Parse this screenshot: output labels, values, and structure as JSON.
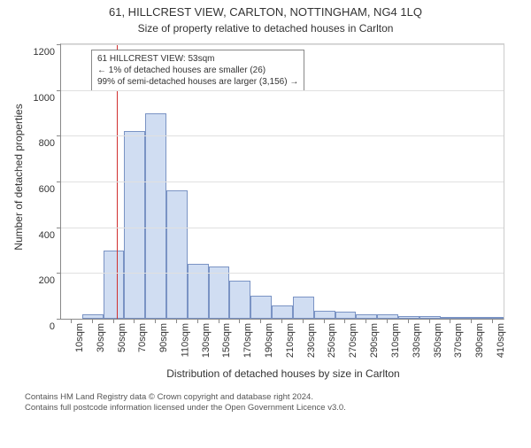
{
  "title_main": "61, HILLCREST VIEW, CARLTON, NOTTINGHAM, NG4 1LQ",
  "title_sub": "Size of property relative to detached houses in Carlton",
  "y_axis_label": "Number of detached properties",
  "x_axis_label": "Distribution of detached houses by size in Carlton",
  "chart": {
    "type": "histogram",
    "ylim": [
      0,
      1200
    ],
    "ytick_step": 200,
    "bar_fill": "#d0ddf2",
    "bar_border": "#7a93c4",
    "grid_color": "#e0e0e0",
    "background_color": "#ffffff",
    "ref_line_color": "#d03030",
    "ref_line_value": 53,
    "x_start": 0,
    "x_bin_width": 20,
    "x_tick_start": 10,
    "x_tick_step": 20,
    "x_tick_count": 21,
    "x_unit": "sqm",
    "bars": [
      0,
      20,
      300,
      820,
      900,
      560,
      240,
      230,
      165,
      100,
      60,
      95,
      35,
      30,
      20,
      20,
      12,
      10,
      5,
      2,
      2
    ]
  },
  "annotation": {
    "line1": "61 HILLCREST VIEW: 53sqm",
    "line2": "← 1% of detached houses are smaller (26)",
    "line3": "99% of semi-detached houses are larger (3,156) →",
    "border_color": "#888888",
    "background": "#ffffff",
    "fontsize": 10
  },
  "footer": {
    "line1": "Contains HM Land Registry data © Crown copyright and database right 2024.",
    "line2": "Contains full postcode information licensed under the Open Government Licence v3.0."
  }
}
